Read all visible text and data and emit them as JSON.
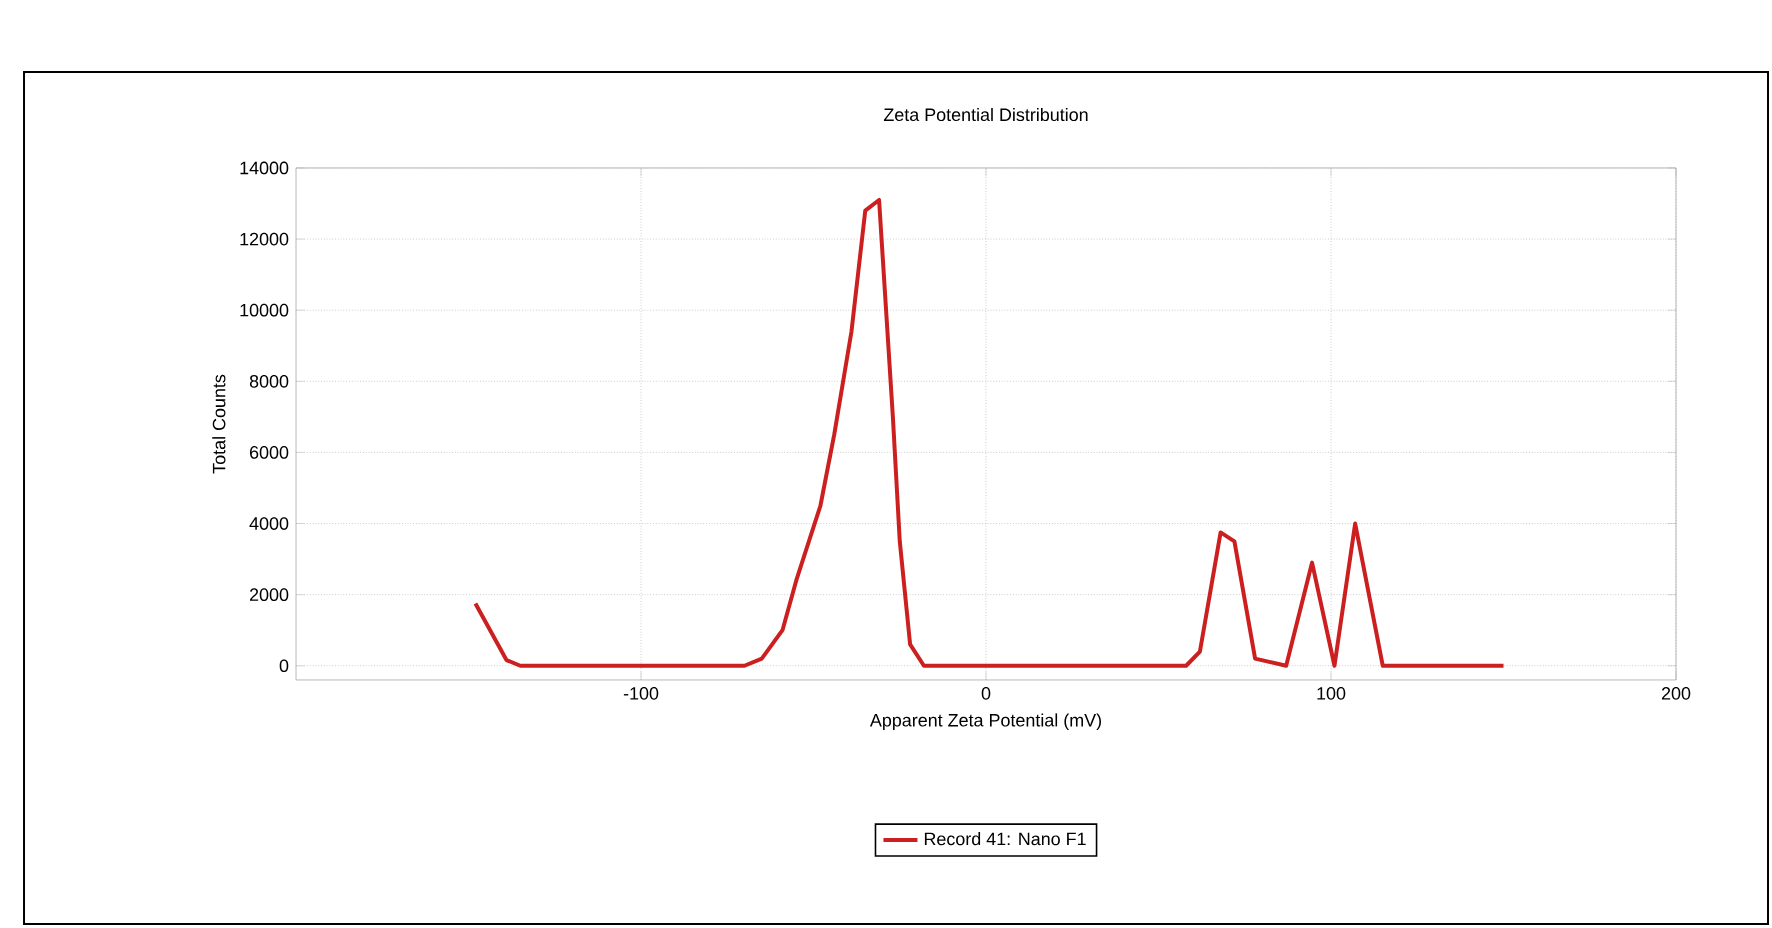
{
  "chart_data": {
    "type": "line",
    "title": "Zeta Potential Distribution",
    "xlabel": "Apparent Zeta Potential (mV)",
    "ylabel": "Total Counts",
    "xlim": [
      -200,
      200
    ],
    "ylim": [
      -400,
      14000
    ],
    "xticks": [
      -100,
      0,
      100,
      200
    ],
    "yticks": [
      0,
      2000,
      4000,
      6000,
      8000,
      10000,
      12000,
      14000
    ],
    "grid": true,
    "legend": "bottom",
    "line_style": "solid",
    "series": [
      {
        "name": "Record 41: Nano F1",
        "color": "#cc1f1f",
        "x": [
          -148,
          -139,
          -135,
          -100,
          -70,
          -65,
          -59,
          -55,
          -48,
          -44,
          -39,
          -35,
          -31,
          -27,
          -25,
          -22,
          -18,
          0,
          58,
          62,
          68,
          72,
          78,
          87,
          94.5,
          101,
          107,
          115,
          150
        ],
        "values": [
          1750,
          160,
          0,
          0,
          0,
          200,
          1000,
          2400,
          4500,
          6500,
          9400,
          12800,
          13100,
          7000,
          3500,
          600,
          0,
          0,
          0,
          400,
          3750,
          3500,
          200,
          0,
          2900,
          0,
          4000,
          0,
          0
        ]
      }
    ]
  }
}
